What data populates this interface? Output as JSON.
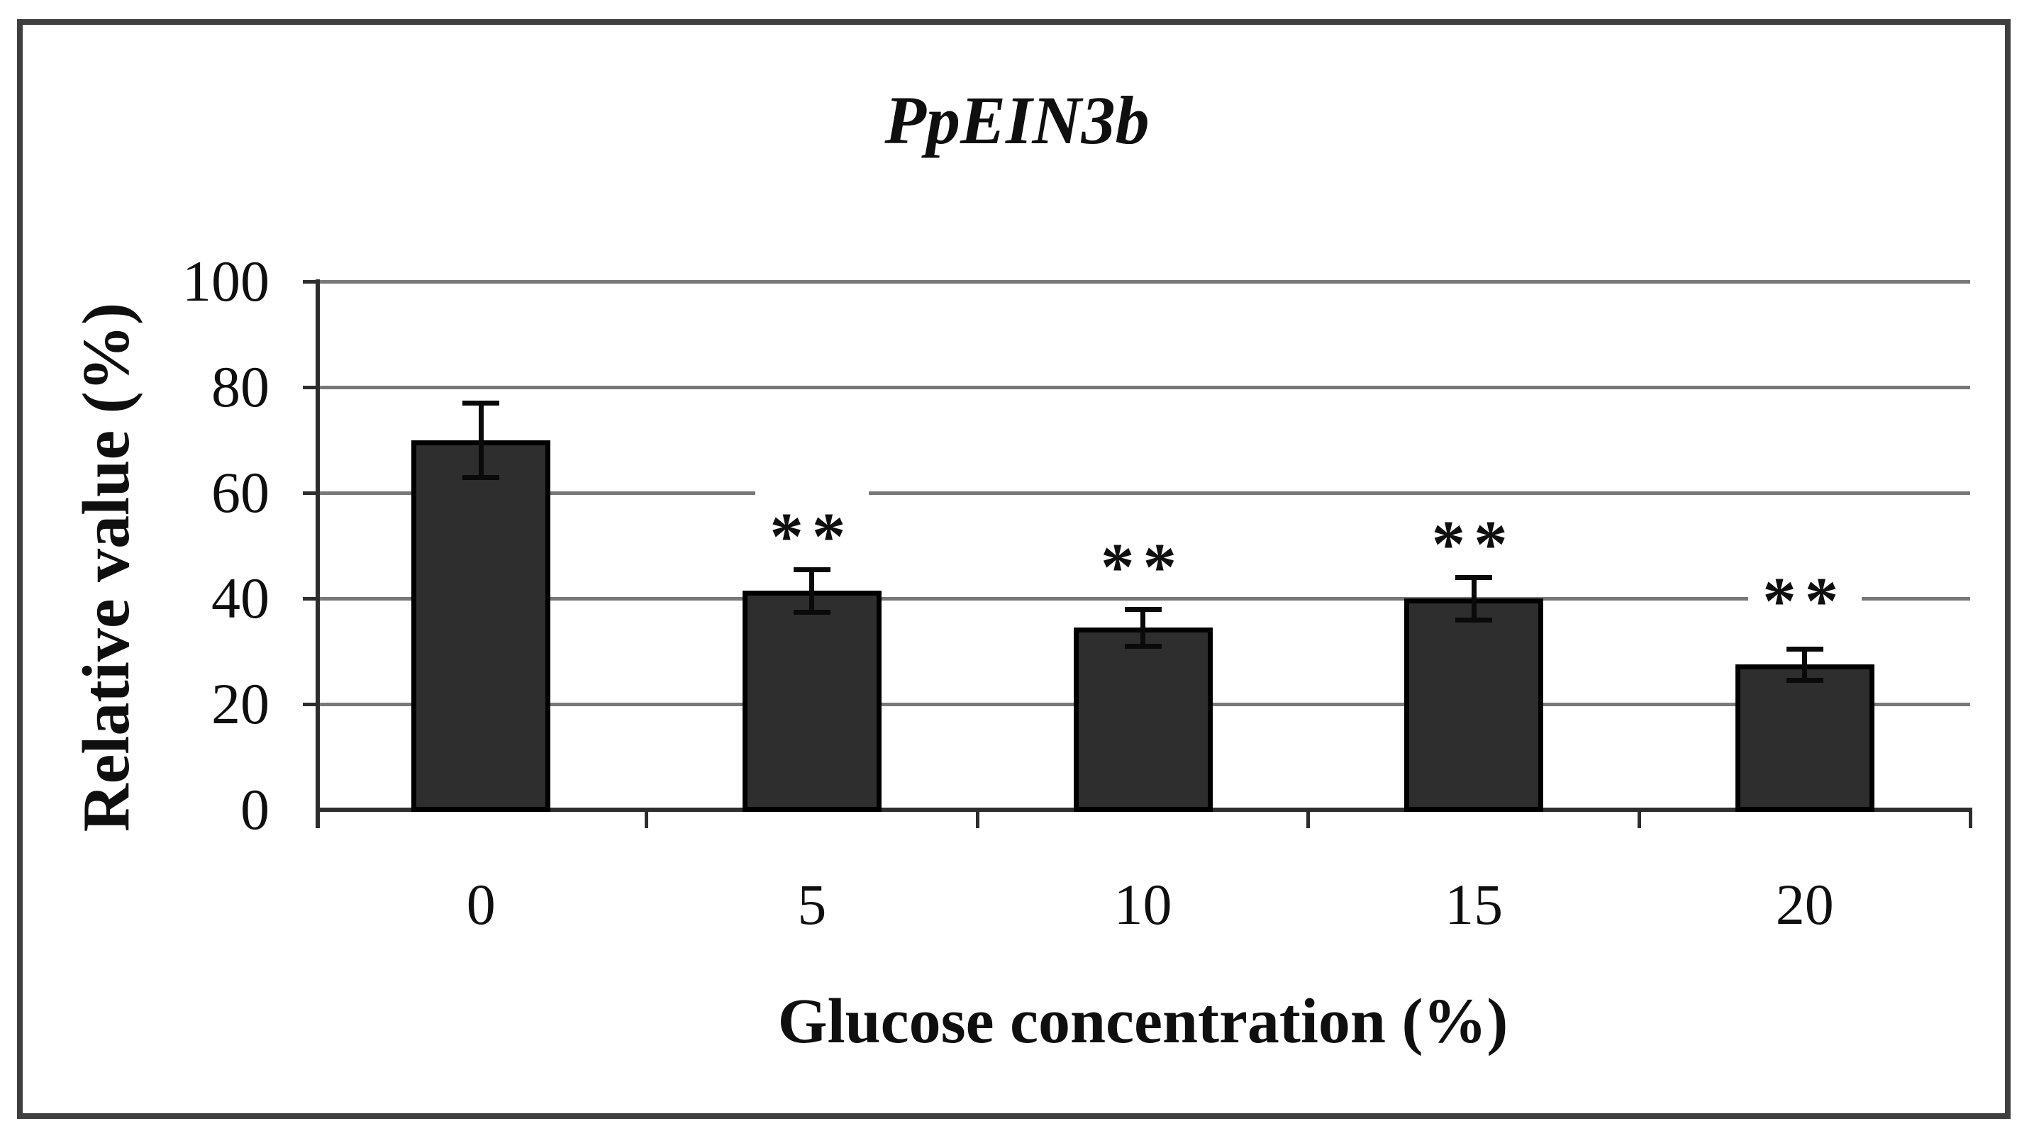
{
  "figure": {
    "title": "PpEIN3b"
  },
  "y_axis": {
    "title": "Relative value (%)",
    "tick_labels": [
      "100",
      "80",
      "60",
      "40",
      "20",
      "0"
    ]
  },
  "x_axis": {
    "title": "Glucose concentration (%)",
    "tick_labels": [
      "0",
      "5",
      "10",
      "15",
      "20"
    ]
  },
  "chart_data": {
    "type": "bar",
    "title": "PpEIN3b",
    "categories": [
      "0",
      "5",
      "10",
      "15",
      "20"
    ],
    "values": [
      70,
      41.5,
      34.5,
      40,
      27.5
    ],
    "errors": [
      7,
      4,
      3.5,
      4,
      3
    ],
    "significance": [
      "",
      "**",
      "**",
      "**",
      "**"
    ],
    "xlabel": "Glucose concentration (%)",
    "ylabel": "Relative value (%)",
    "ylim": [
      0,
      100
    ],
    "ytick_step": 20,
    "grid": true,
    "legend": "none",
    "bar_color": "#2e2e2e",
    "bar_border_color": "#000000",
    "gridline_color": "#787878",
    "axis_color": "#2d2d2d",
    "background_color": "#ffffff"
  }
}
